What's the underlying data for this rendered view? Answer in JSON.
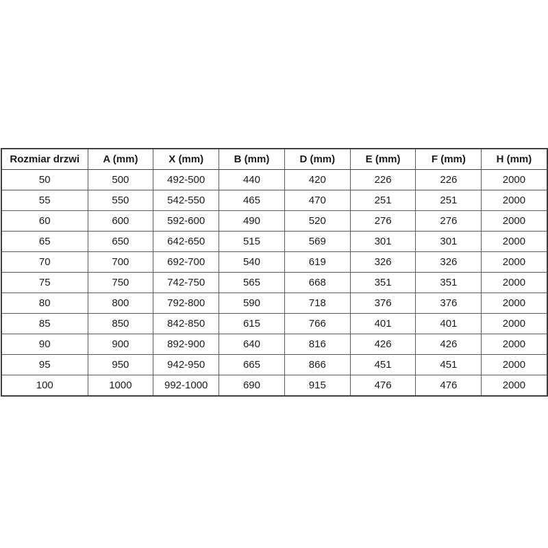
{
  "chart_data": {
    "type": "table",
    "columns": [
      "Rozmiar drzwi",
      "A (mm)",
      "X (mm)",
      "B (mm)",
      "D (mm)",
      "E (mm)",
      "F (mm)",
      "H (mm)"
    ],
    "rows": [
      [
        "50",
        "500",
        "492-500",
        "440",
        "420",
        "226",
        "226",
        "2000"
      ],
      [
        "55",
        "550",
        "542-550",
        "465",
        "470",
        "251",
        "251",
        "2000"
      ],
      [
        "60",
        "600",
        "592-600",
        "490",
        "520",
        "276",
        "276",
        "2000"
      ],
      [
        "65",
        "650",
        "642-650",
        "515",
        "569",
        "301",
        "301",
        "2000"
      ],
      [
        "70",
        "700",
        "692-700",
        "540",
        "619",
        "326",
        "326",
        "2000"
      ],
      [
        "75",
        "750",
        "742-750",
        "565",
        "668",
        "351",
        "351",
        "2000"
      ],
      [
        "80",
        "800",
        "792-800",
        "590",
        "718",
        "376",
        "376",
        "2000"
      ],
      [
        "85",
        "850",
        "842-850",
        "615",
        "766",
        "401",
        "401",
        "2000"
      ],
      [
        "90",
        "900",
        "892-900",
        "640",
        "816",
        "426",
        "426",
        "2000"
      ],
      [
        "95",
        "950",
        "942-950",
        "665",
        "866",
        "451",
        "451",
        "2000"
      ],
      [
        "100",
        "1000",
        "992-1000",
        "690",
        "915",
        "476",
        "476",
        "2000"
      ]
    ],
    "layout": {
      "grid": "on",
      "header_style": "bold-centered",
      "cell_align": "center"
    }
  },
  "colors": {
    "background": "#ffffff",
    "border_outer": "#3f3f3f",
    "border_inner": "#595959",
    "text": "#1a1a1a"
  }
}
